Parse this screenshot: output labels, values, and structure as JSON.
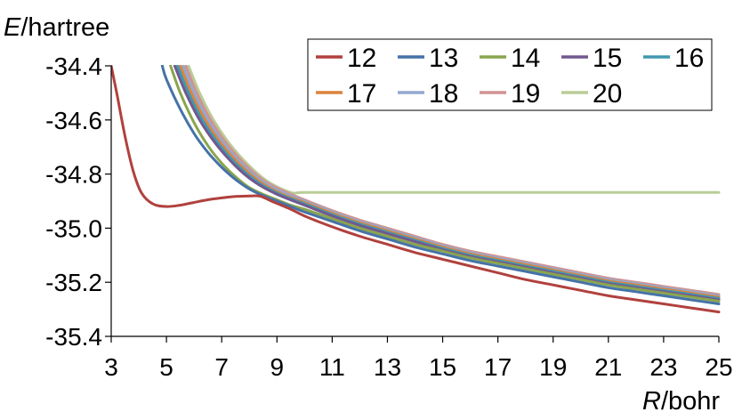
{
  "chart_data": {
    "type": "line",
    "y_title": {
      "var": "E",
      "unit": "/hartree"
    },
    "x_title": {
      "var": "R",
      "unit": "/bohr"
    },
    "xlim": [
      3,
      25
    ],
    "ylim": [
      -35.4,
      -34.4
    ],
    "x_ticks": [
      "3",
      "5",
      "7",
      "9",
      "11",
      "13",
      "15",
      "17",
      "19",
      "21",
      "23",
      "25"
    ],
    "y_ticks": [
      "-34.4",
      "-34.6",
      "-34.8",
      "-35.0",
      "-35.2",
      "-35.4"
    ],
    "grid": false,
    "legend_position": "top-right",
    "series": [
      {
        "name": "12",
        "color": "#b0413e",
        "points": [
          [
            3,
            -34.4
          ],
          [
            3.2,
            -34.5
          ],
          [
            3.5,
            -34.66
          ],
          [
            3.8,
            -34.79
          ],
          [
            4.1,
            -34.87
          ],
          [
            4.5,
            -34.91
          ],
          [
            5.0,
            -34.92
          ],
          [
            5.5,
            -34.915
          ],
          [
            6,
            -34.905
          ],
          [
            6.5,
            -34.895
          ],
          [
            7,
            -34.888
          ],
          [
            7.5,
            -34.883
          ],
          [
            8,
            -34.881
          ],
          [
            8.4,
            -34.882
          ],
          [
            8.8,
            -34.9
          ],
          [
            9.5,
            -34.93
          ],
          [
            10,
            -34.955
          ],
          [
            11,
            -34.995
          ],
          [
            12,
            -35.03
          ],
          [
            13,
            -35.06
          ],
          [
            14,
            -35.09
          ],
          [
            15,
            -35.115
          ],
          [
            16,
            -35.14
          ],
          [
            17,
            -35.165
          ],
          [
            18,
            -35.19
          ],
          [
            19,
            -35.21
          ],
          [
            20,
            -35.23
          ],
          [
            21,
            -35.25
          ],
          [
            22,
            -35.265
          ],
          [
            23,
            -35.28
          ],
          [
            24,
            -35.295
          ],
          [
            25,
            -35.31
          ]
        ]
      },
      {
        "name": "13",
        "color": "#4572a7",
        "points": [
          [
            4.85,
            -34.4
          ],
          [
            5,
            -34.45
          ],
          [
            5.5,
            -34.56
          ],
          [
            6,
            -34.65
          ],
          [
            6.5,
            -34.72
          ],
          [
            7,
            -34.775
          ],
          [
            7.5,
            -34.82
          ],
          [
            8,
            -34.855
          ],
          [
            8.5,
            -34.88
          ],
          [
            9,
            -34.9
          ],
          [
            9.5,
            -34.92
          ],
          [
            10,
            -34.94
          ],
          [
            11,
            -34.975
          ],
          [
            12,
            -35.01
          ],
          [
            13,
            -35.04
          ],
          [
            14,
            -35.07
          ],
          [
            15,
            -35.095
          ],
          [
            16,
            -35.12
          ],
          [
            17,
            -35.14
          ],
          [
            18,
            -35.16
          ],
          [
            19,
            -35.18
          ],
          [
            20,
            -35.2
          ],
          [
            21,
            -35.22
          ],
          [
            22,
            -35.235
          ],
          [
            23,
            -35.25
          ],
          [
            24,
            -35.265
          ],
          [
            25,
            -35.28
          ]
        ]
      },
      {
        "name": "14",
        "color": "#89a54e",
        "points": [
          [
            5.15,
            -34.4
          ],
          [
            5.5,
            -34.5
          ],
          [
            6,
            -34.61
          ],
          [
            6.5,
            -34.695
          ],
          [
            7,
            -34.76
          ],
          [
            7.5,
            -34.81
          ],
          [
            8,
            -34.85
          ],
          [
            8.5,
            -34.875
          ],
          [
            9,
            -34.895
          ],
          [
            9.5,
            -34.915
          ],
          [
            10,
            -34.93
          ],
          [
            11,
            -34.965
          ],
          [
            12,
            -35.0
          ],
          [
            13,
            -35.03
          ],
          [
            14,
            -35.06
          ],
          [
            15,
            -35.085
          ],
          [
            16,
            -35.11
          ],
          [
            17,
            -35.13
          ],
          [
            18,
            -35.15
          ],
          [
            19,
            -35.17
          ],
          [
            20,
            -35.19
          ],
          [
            21,
            -35.21
          ],
          [
            22,
            -35.225
          ],
          [
            23,
            -35.24
          ],
          [
            24,
            -35.255
          ],
          [
            25,
            -35.27
          ]
        ]
      },
      {
        "name": "15",
        "color": "#71588f",
        "points": [
          [
            5.3,
            -34.4
          ],
          [
            5.7,
            -34.5
          ],
          [
            6.2,
            -34.6
          ],
          [
            6.8,
            -34.69
          ],
          [
            7.5,
            -34.77
          ],
          [
            8.2,
            -34.83
          ],
          [
            9,
            -34.875
          ],
          [
            10,
            -34.915
          ],
          [
            11,
            -34.955
          ],
          [
            12,
            -34.99
          ],
          [
            13,
            -35.02
          ],
          [
            14,
            -35.05
          ],
          [
            15,
            -35.08
          ],
          [
            16,
            -35.105
          ],
          [
            17,
            -35.125
          ],
          [
            18,
            -35.145
          ],
          [
            19,
            -35.165
          ],
          [
            20,
            -35.185
          ],
          [
            21,
            -35.205
          ],
          [
            22,
            -35.22
          ],
          [
            23,
            -35.235
          ],
          [
            24,
            -35.25
          ],
          [
            25,
            -35.265
          ]
        ]
      },
      {
        "name": "16",
        "color": "#4198af",
        "points": [
          [
            5.4,
            -34.4
          ],
          [
            5.8,
            -34.5
          ],
          [
            6.3,
            -34.6
          ],
          [
            6.9,
            -34.69
          ],
          [
            7.6,
            -34.77
          ],
          [
            8.3,
            -34.83
          ],
          [
            9.1,
            -34.875
          ],
          [
            10,
            -34.91
          ],
          [
            11,
            -34.95
          ],
          [
            12,
            -34.985
          ],
          [
            13,
            -35.015
          ],
          [
            14,
            -35.045
          ],
          [
            15,
            -35.075
          ],
          [
            16,
            -35.1
          ],
          [
            17,
            -35.12
          ],
          [
            18,
            -35.14
          ],
          [
            19,
            -35.16
          ],
          [
            20,
            -35.18
          ],
          [
            21,
            -35.2
          ],
          [
            22,
            -35.215
          ],
          [
            23,
            -35.23
          ],
          [
            24,
            -35.245
          ],
          [
            25,
            -35.26
          ]
        ]
      },
      {
        "name": "17",
        "color": "#db843d",
        "points": [
          [
            5.5,
            -34.4
          ],
          [
            5.9,
            -34.5
          ],
          [
            6.4,
            -34.6
          ],
          [
            7,
            -34.69
          ],
          [
            7.7,
            -34.77
          ],
          [
            8.4,
            -34.83
          ],
          [
            9.2,
            -34.875
          ],
          [
            10,
            -34.905
          ],
          [
            11,
            -34.945
          ],
          [
            12,
            -34.98
          ],
          [
            13,
            -35.01
          ],
          [
            14,
            -35.04
          ],
          [
            15,
            -35.07
          ],
          [
            16,
            -35.095
          ],
          [
            17,
            -35.115
          ],
          [
            18,
            -35.135
          ],
          [
            19,
            -35.155
          ],
          [
            20,
            -35.175
          ],
          [
            21,
            -35.195
          ],
          [
            22,
            -35.21
          ],
          [
            23,
            -35.225
          ],
          [
            24,
            -35.24
          ],
          [
            25,
            -35.255
          ]
        ]
      },
      {
        "name": "18",
        "color": "#93a9cf",
        "points": [
          [
            5.6,
            -34.4
          ],
          [
            6,
            -34.5
          ],
          [
            6.5,
            -34.6
          ],
          [
            7.1,
            -34.69
          ],
          [
            7.8,
            -34.77
          ],
          [
            8.5,
            -34.83
          ],
          [
            9.3,
            -34.872
          ],
          [
            10,
            -34.9
          ],
          [
            11,
            -34.94
          ],
          [
            12,
            -34.975
          ],
          [
            13,
            -35.005
          ],
          [
            14,
            -35.035
          ],
          [
            15,
            -35.065
          ],
          [
            16,
            -35.09
          ],
          [
            17,
            -35.11
          ],
          [
            18,
            -35.13
          ],
          [
            19,
            -35.15
          ],
          [
            20,
            -35.17
          ],
          [
            21,
            -35.19
          ],
          [
            22,
            -35.205
          ],
          [
            23,
            -35.22
          ],
          [
            24,
            -35.235
          ],
          [
            25,
            -35.25
          ]
        ]
      },
      {
        "name": "19",
        "color": "#d19392",
        "points": [
          [
            5.7,
            -34.4
          ],
          [
            6.1,
            -34.5
          ],
          [
            6.6,
            -34.6
          ],
          [
            7.2,
            -34.69
          ],
          [
            7.9,
            -34.77
          ],
          [
            8.6,
            -34.83
          ],
          [
            9.4,
            -34.87
          ],
          [
            10,
            -34.895
          ],
          [
            11,
            -34.935
          ],
          [
            12,
            -34.97
          ],
          [
            13,
            -35.0
          ],
          [
            14,
            -35.03
          ],
          [
            15,
            -35.06
          ],
          [
            16,
            -35.085
          ],
          [
            17,
            -35.105
          ],
          [
            18,
            -35.125
          ],
          [
            19,
            -35.145
          ],
          [
            20,
            -35.165
          ],
          [
            21,
            -35.185
          ],
          [
            22,
            -35.2
          ],
          [
            23,
            -35.215
          ],
          [
            24,
            -35.23
          ],
          [
            25,
            -35.245
          ]
        ]
      },
      {
        "name": "20",
        "color": "#b9cd96",
        "points": [
          [
            5.8,
            -34.4
          ],
          [
            6.2,
            -34.5
          ],
          [
            6.7,
            -34.6
          ],
          [
            7.3,
            -34.69
          ],
          [
            8,
            -34.77
          ],
          [
            8.7,
            -34.83
          ],
          [
            9.5,
            -34.868
          ],
          [
            10,
            -34.868
          ],
          [
            12,
            -34.868
          ],
          [
            15,
            -34.868
          ],
          [
            18,
            -34.868
          ],
          [
            21,
            -34.868
          ],
          [
            25,
            -34.868
          ]
        ]
      }
    ]
  }
}
